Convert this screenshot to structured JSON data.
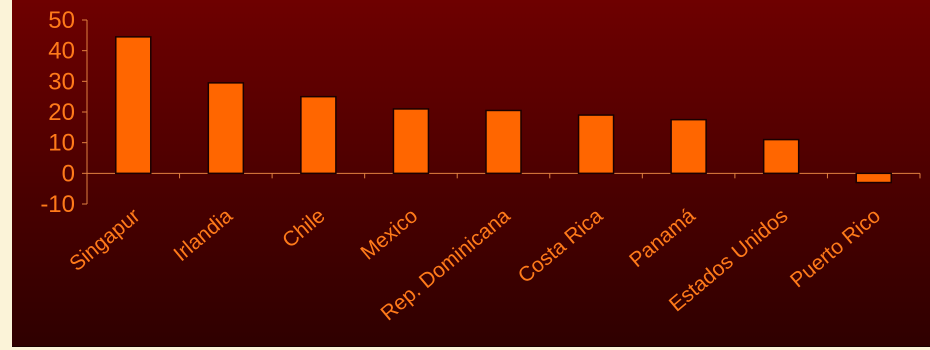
{
  "chart_data": {
    "type": "bar",
    "categories": [
      "Singapur",
      "Irlandia",
      "Chile",
      "Mexico",
      "Rep. Dominicana",
      "Costa Rica",
      "Panamá",
      "Estados Unidos",
      "Puerto Rico"
    ],
    "values": [
      44.5,
      29.5,
      25,
      21,
      20.5,
      19,
      17.5,
      11,
      -3
    ],
    "ylim": [
      -10,
      50
    ],
    "yticks": [
      "50",
      "40",
      "30",
      "20",
      "10",
      "0",
      "-10"
    ],
    "title": "",
    "xlabel": "",
    "ylabel": "",
    "grid": false,
    "colors": {
      "bar_fill": "#ff6600",
      "bar_stroke": "#1a0000",
      "label": "#ff7a1a",
      "axis": "#e08040"
    }
  }
}
